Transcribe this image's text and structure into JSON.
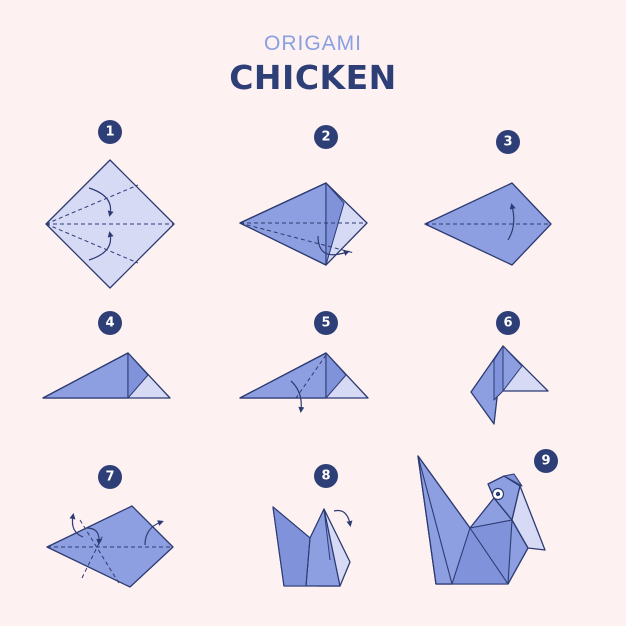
{
  "header": {
    "subtitle": "ORIGAMI",
    "title": "CHICKEN"
  },
  "steps": [
    {
      "number": "1"
    },
    {
      "number": "2"
    },
    {
      "number": "3"
    },
    {
      "number": "4"
    },
    {
      "number": "5"
    },
    {
      "number": "6"
    },
    {
      "number": "7"
    },
    {
      "number": "8"
    },
    {
      "number": "9"
    }
  ],
  "colors": {
    "background": "#fdf1f1",
    "paper_light": "#d6daf5",
    "paper_mid": "#8d9fe0",
    "paper_dark": "#7f92da",
    "outline": "#2d3b73",
    "badge": "#2e3f78",
    "subtitle": "#8aa0e0"
  }
}
